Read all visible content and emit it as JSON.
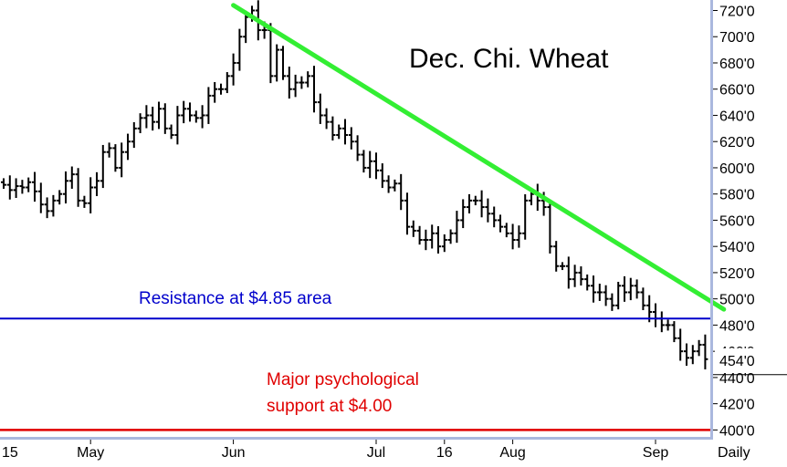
{
  "chart_data": {
    "type": "ohlc",
    "title": "Dec. Chi. Wheat",
    "period_label": "Daily",
    "ylim": [
      394,
      728
    ],
    "y_ticks": [
      "720'0",
      "700'0",
      "680'0",
      "660'0",
      "640'0",
      "620'0",
      "600'0",
      "580'0",
      "560'0",
      "540'0",
      "520'0",
      "500'0",
      "480'0",
      "460'0",
      "440'0",
      "420'0",
      "400'0"
    ],
    "y_tick_values": [
      720,
      700,
      680,
      660,
      640,
      620,
      600,
      580,
      560,
      540,
      520,
      500,
      480,
      460,
      440,
      420,
      400
    ],
    "last_price_label": "454'0",
    "last_price": 454,
    "x_ticks": [
      {
        "label": "15",
        "bar": -1
      },
      {
        "label": "May",
        "bar": 14
      },
      {
        "label": "Jun",
        "bar": 37
      },
      {
        "label": "Jul",
        "bar": 60
      },
      {
        "label": "16",
        "bar": 71
      },
      {
        "label": "Aug",
        "bar": 82
      },
      {
        "label": "Sep",
        "bar": 105
      }
    ],
    "closes": [
      587,
      583,
      586,
      585,
      589,
      582,
      572,
      567,
      575,
      580,
      590,
      595,
      575,
      573,
      585,
      590,
      612,
      615,
      600,
      612,
      620,
      630,
      638,
      640,
      635,
      645,
      630,
      625,
      640,
      645,
      640,
      638,
      640,
      655,
      660,
      660,
      670,
      680,
      700,
      715,
      720,
      705,
      705,
      670,
      690,
      670,
      660,
      665,
      665,
      670,
      650,
      640,
      635,
      625,
      630,
      625,
      620,
      610,
      600,
      605,
      598,
      590,
      585,
      588,
      575,
      555,
      552,
      545,
      545,
      550,
      540,
      545,
      550,
      560,
      570,
      575,
      575,
      570,
      565,
      560,
      555,
      550,
      545,
      550,
      575,
      580,
      575,
      570,
      540,
      525,
      525,
      515,
      520,
      515,
      510,
      505,
      505,
      500,
      495,
      510,
      505,
      510,
      505,
      495,
      490,
      485,
      480,
      480,
      470,
      460,
      455,
      460,
      465,
      454
    ],
    "annotations": [
      {
        "text": "Resistance at $4.85 area",
        "price": 485,
        "color": "#0000cc"
      },
      {
        "text": "Major psychological",
        "color": "#e00000"
      },
      {
        "text": "support at $4.00",
        "price": 400,
        "color": "#e00000"
      }
    ],
    "trendline": {
      "from": {
        "bar": 37,
        "price": 724
      },
      "to": {
        "bar": 116,
        "price": 492
      },
      "color": "#33ee33"
    },
    "resistance_line": {
      "price": 485,
      "color": "#0000cc"
    },
    "support_line": {
      "price": 400,
      "color": "#e00000"
    },
    "grid": false
  }
}
